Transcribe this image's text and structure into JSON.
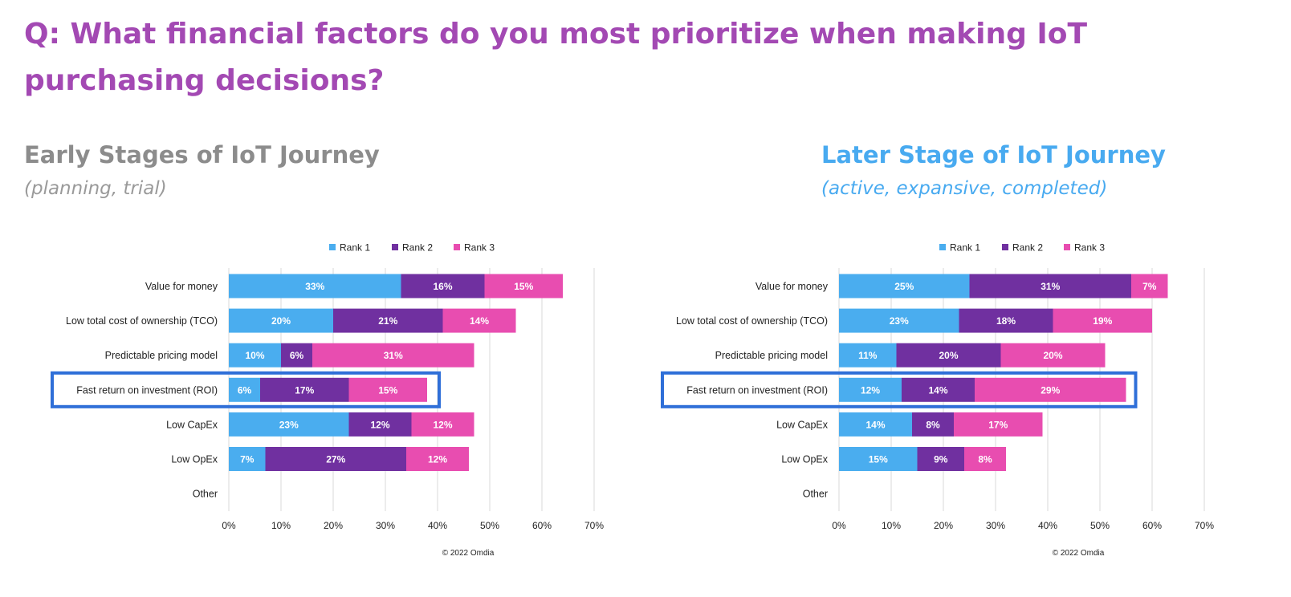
{
  "question": "Q: What financial factors do you most prioritize when making IoT purchasing decisions?",
  "panels": {
    "early": {
      "title": "Early Stages of IoT Journey",
      "subtitle": "(planning, trial)"
    },
    "later": {
      "title": "Later Stage of IoT Journey",
      "subtitle": "(active, expansive, completed)"
    }
  },
  "colors": {
    "rank1": "#4aadef",
    "rank2": "#7030a0",
    "rank3": "#e84db0",
    "highlight": "#2f6fd8",
    "question": "#a349b3",
    "early_heading": "#8c8c8c",
    "later_heading": "#48aaf0"
  },
  "chart_data": [
    {
      "type": "bar",
      "orientation": "horizontal",
      "stacked": true,
      "categories": [
        "Value for money",
        "Low total cost of ownership (TCO)",
        "Predictable pricing model",
        "Fast return on investment (ROI)",
        "Low CapEx",
        "Low OpEx",
        "Other"
      ],
      "series": [
        {
          "name": "Rank 1",
          "values": [
            33,
            20,
            10,
            6,
            23,
            7,
            0
          ]
        },
        {
          "name": "Rank 2",
          "values": [
            16,
            21,
            6,
            17,
            12,
            27,
            0
          ]
        },
        {
          "name": "Rank 3",
          "values": [
            15,
            14,
            31,
            15,
            12,
            12,
            0
          ]
        }
      ],
      "xticks": [
        "0%",
        "10%",
        "20%",
        "30%",
        "40%",
        "50%",
        "60%",
        "70%"
      ],
      "xlim": [
        0,
        70
      ],
      "grid": true,
      "legend": "top",
      "highlighted_category": "Fast return on investment (ROI)",
      "footnote": "© 2022 Omdia"
    },
    {
      "type": "bar",
      "orientation": "horizontal",
      "stacked": true,
      "categories": [
        "Value for money",
        "Low total cost of ownership (TCO)",
        "Predictable pricing model",
        "Fast return on investment (ROI)",
        "Low CapEx",
        "Low OpEx",
        "Other"
      ],
      "series": [
        {
          "name": "Rank 1",
          "values": [
            25,
            23,
            11,
            12,
            14,
            15,
            0
          ]
        },
        {
          "name": "Rank 2",
          "values": [
            31,
            18,
            20,
            14,
            8,
            9,
            0
          ]
        },
        {
          "name": "Rank 3",
          "values": [
            7,
            19,
            20,
            29,
            17,
            8,
            0
          ]
        }
      ],
      "xticks": [
        "0%",
        "10%",
        "20%",
        "30%",
        "40%",
        "50%",
        "60%",
        "70%"
      ],
      "xlim": [
        0,
        70
      ],
      "grid": true,
      "legend": "top",
      "highlighted_category": "Fast return on investment (ROI)",
      "footnote": "© 2022 Omdia"
    }
  ]
}
